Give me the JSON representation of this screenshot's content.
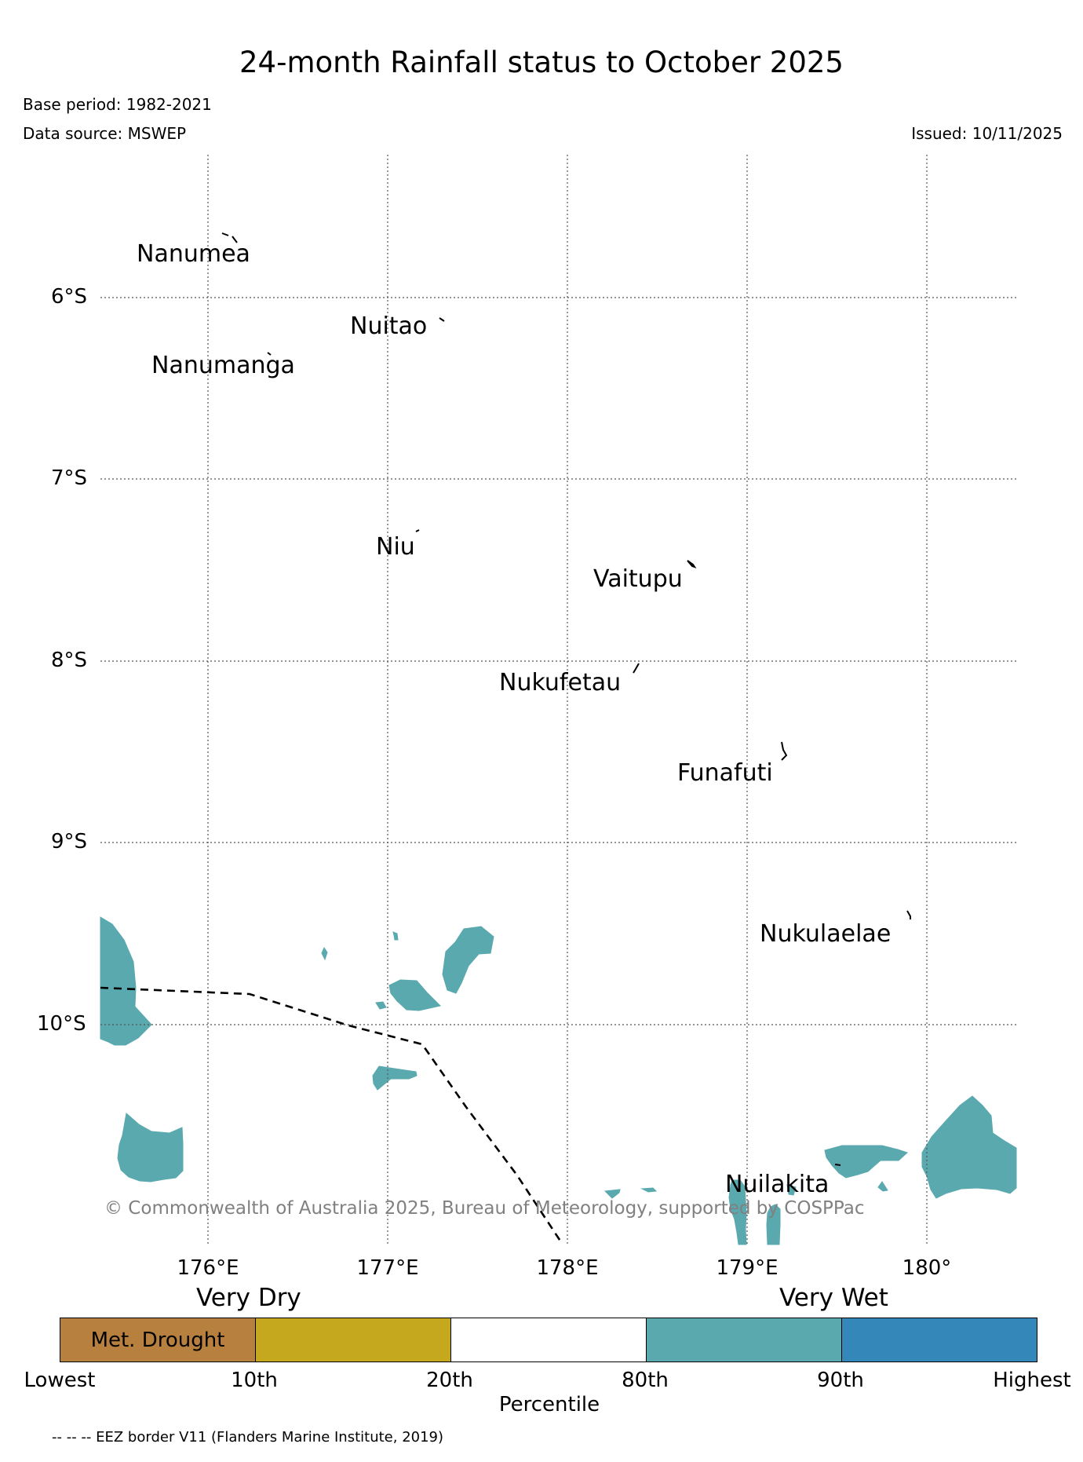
{
  "title": "24-month Rainfall status to October 2025",
  "base_period": "Base period: 1982-2021",
  "data_source": "Data source: MSWEP",
  "issued": "Issued: 10/11/2025",
  "copyright": "© Commonwealth of Australia 2025, Bureau of Meteorology, supported by COSPPac",
  "lat_ticks": [
    "6°S",
    "7°S",
    "8°S",
    "9°S",
    "10°S"
  ],
  "lon_ticks": [
    "176°E",
    "177°E",
    "178°E",
    "179°E",
    "180°"
  ],
  "islands": [
    "Nanumea",
    "Nuitao",
    "Nanumanga",
    "Niu",
    "Vaitupu",
    "Nukufetau",
    "Funafuti",
    "Nukulaelae",
    "Nuilakita"
  ],
  "legend": {
    "very_dry": "Very Dry",
    "very_wet": "Very Wet",
    "drought_label": "Met. Drought",
    "ticks": [
      "Lowest",
      "10th",
      "20th",
      "80th",
      "90th",
      "Highest"
    ],
    "axis_label": "Percentile",
    "colors": [
      "#b8803e",
      "#c6a81f",
      "#ffffff",
      "#5aa9af",
      "#3387b9"
    ]
  },
  "colors": {
    "wet": "#5aa9af",
    "grid": "#555555"
  },
  "footnote": "-- -- -- EEZ border V11 (Flanders Marine Institute, 2019)"
}
